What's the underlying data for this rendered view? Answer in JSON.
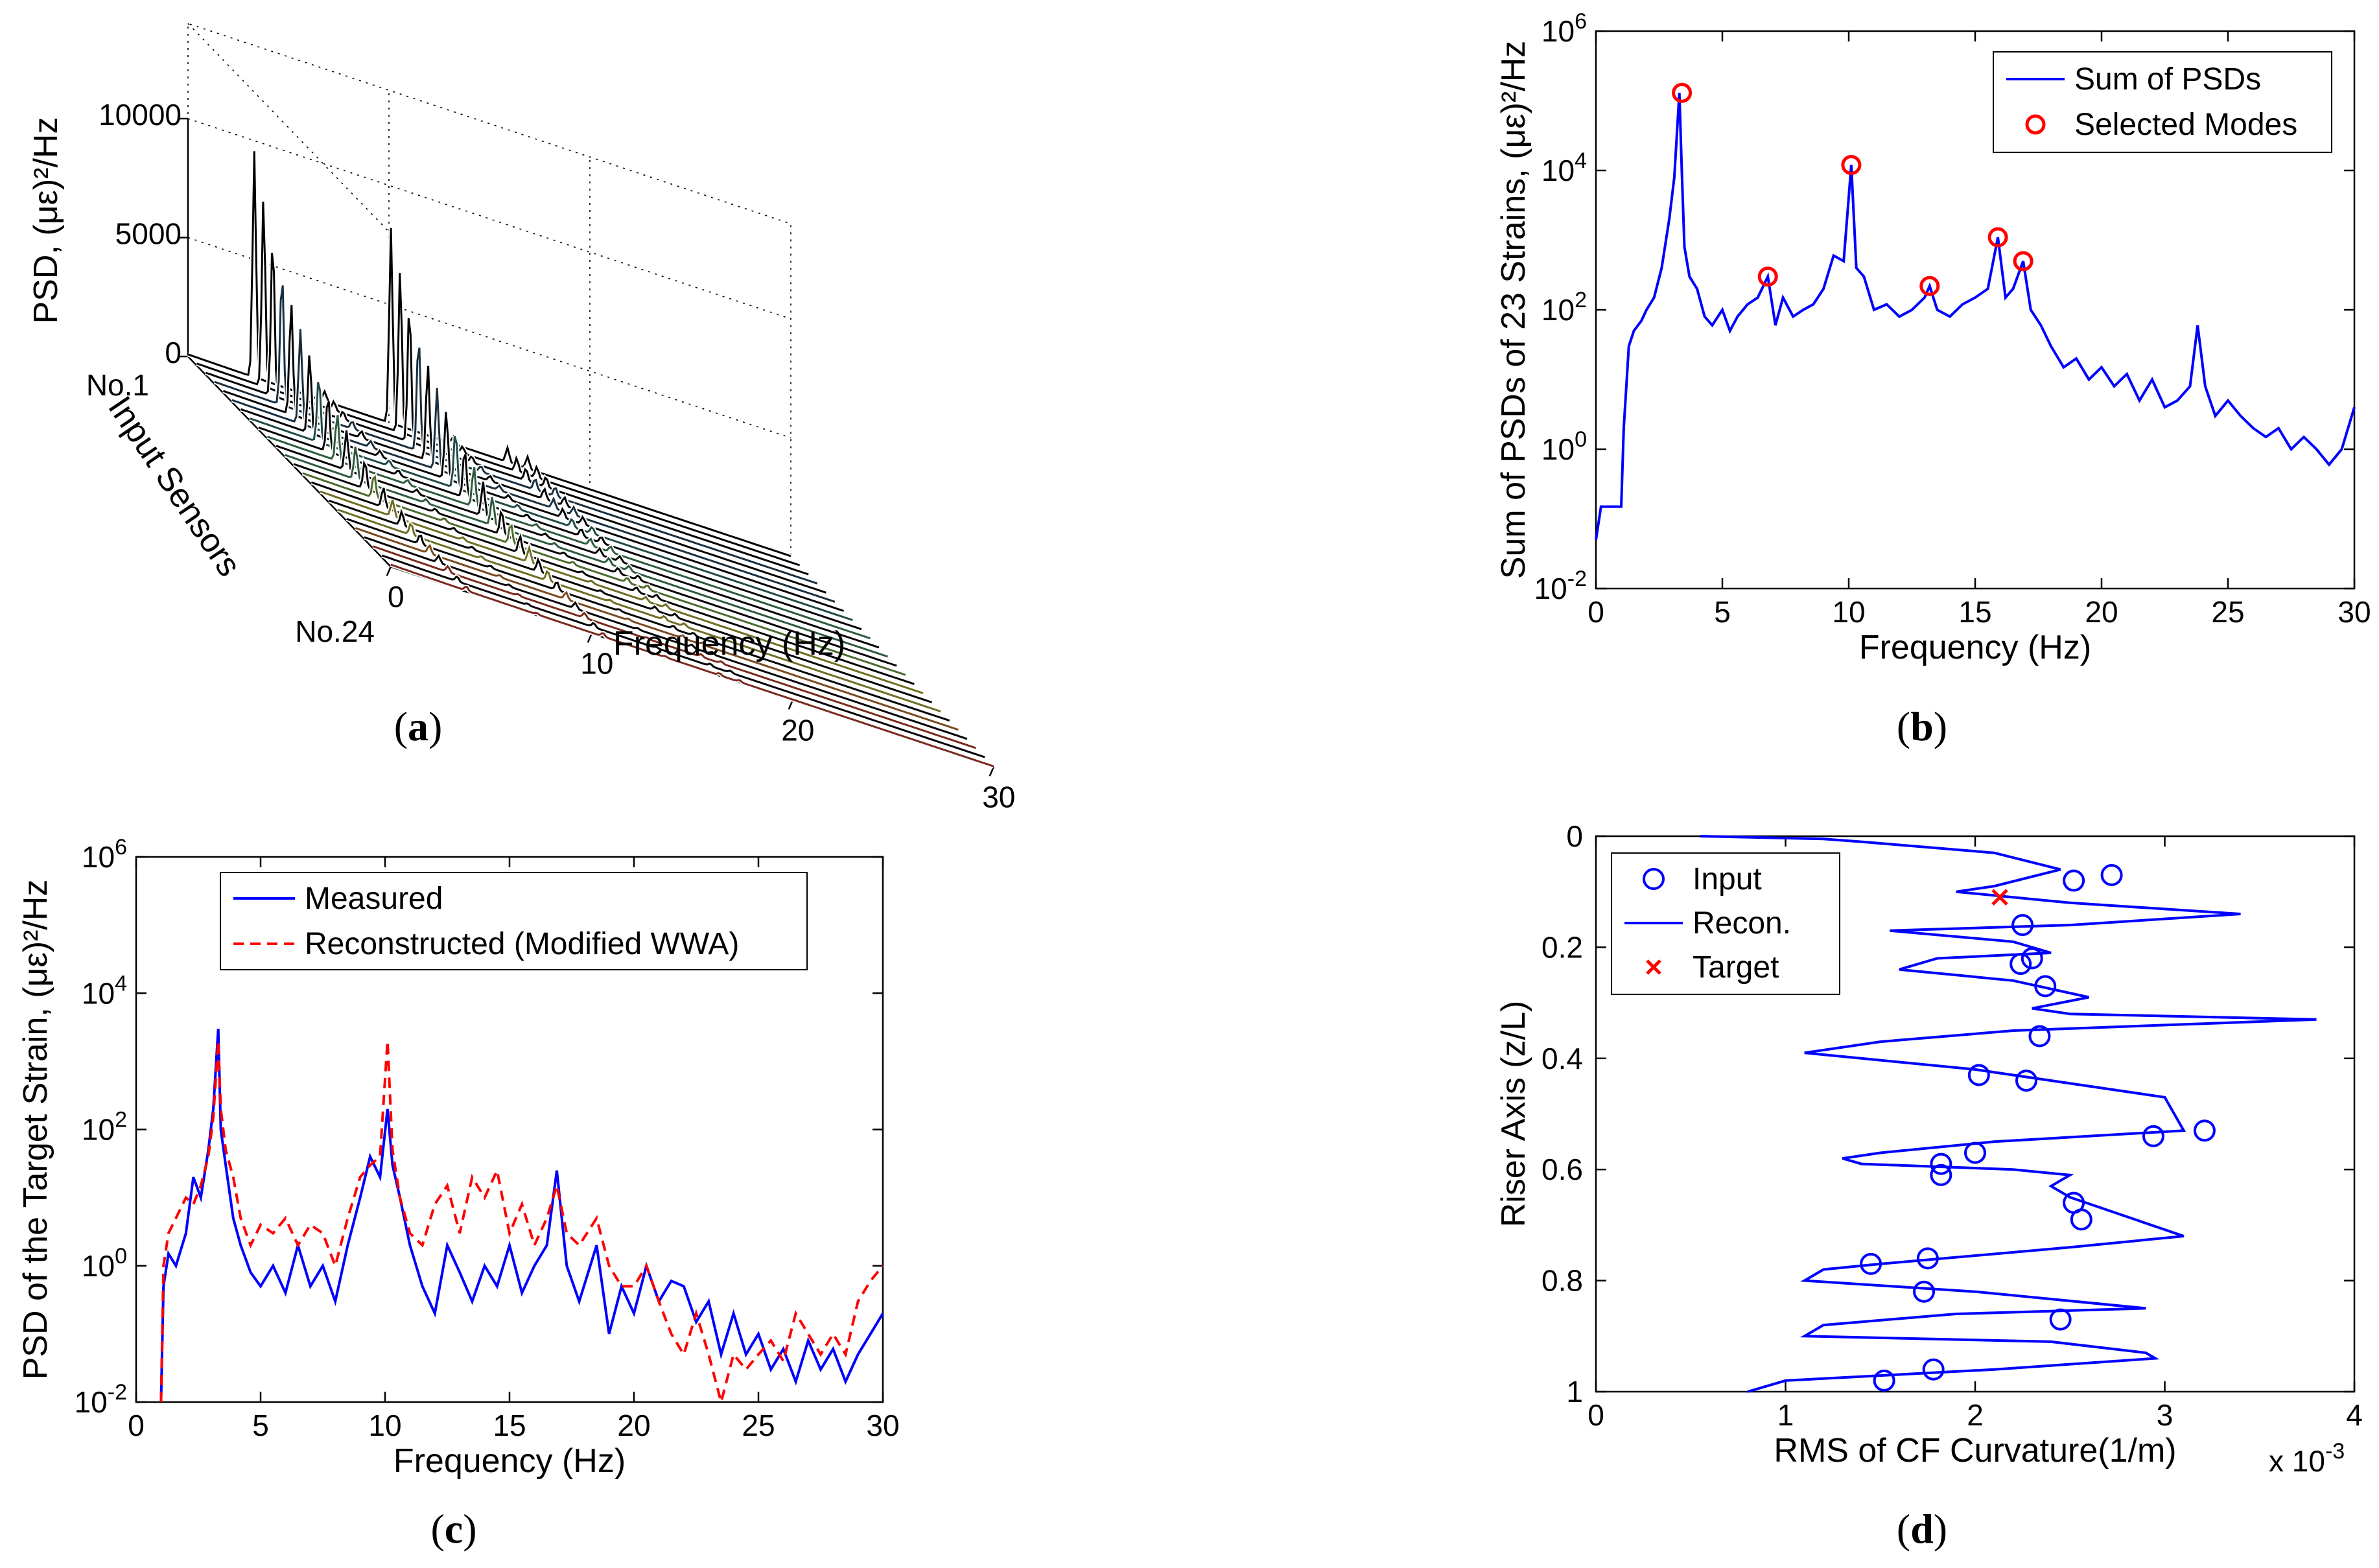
{
  "captions": {
    "a": "a",
    "b": "b",
    "c": "c",
    "d": "d"
  },
  "chart_data": [
    {
      "id": "a",
      "type": "waterfall",
      "title": "",
      "zlabel": "PSD, (με)²/Hz",
      "ylabel": "Input Sensors",
      "xlabel": "Frequency (Hz)",
      "z_ticks": [
        "0",
        "5000",
        "10000"
      ],
      "x_ticks": [
        "0",
        "10",
        "20",
        "30"
      ],
      "sensor_ticks": [
        "No.1",
        "No.24"
      ],
      "sensor_count": 24,
      "xlim": [
        0,
        30
      ],
      "zlim": [
        0,
        10000
      ],
      "peak_frequencies_hz": [
        3.3,
        6.8,
        10.1,
        13.2,
        15.9,
        16.9
      ],
      "peak_amplitudes_first_sensor": [
        9500,
        400,
        8200,
        300,
        600,
        500
      ]
    },
    {
      "id": "b",
      "type": "line",
      "scale": "log-y",
      "xlabel": "Frequency (Hz)",
      "ylabel": "Sum of PSDs of 23 Strains, (με)²/Hz",
      "xlim": [
        0,
        30
      ],
      "ylim_exp": [
        -2,
        6
      ],
      "x_ticks": [
        "0",
        "5",
        "10",
        "15",
        "20",
        "25",
        "30"
      ],
      "y_tick_exps": [
        -2,
        0,
        2,
        4,
        6
      ],
      "legend": [
        "Sum of PSDs",
        "Selected Modes"
      ],
      "selected_modes": {
        "x": [
          3.4,
          6.8,
          10.1,
          13.2,
          15.9,
          16.9
        ],
        "y": [
          130000,
          300,
          12000,
          220,
          1100,
          500
        ]
      },
      "series": [
        {
          "name": "Sum of PSDs",
          "x": [
            0,
            0.2,
            0.5,
            1.0,
            1.1,
            1.3,
            1.5,
            1.8,
            2.0,
            2.3,
            2.6,
            2.9,
            3.1,
            3.3,
            3.4,
            3.5,
            3.7,
            4.0,
            4.3,
            4.6,
            5.0,
            5.3,
            5.6,
            6.0,
            6.4,
            6.8,
            7.1,
            7.4,
            7.8,
            8.2,
            8.6,
            9.0,
            9.4,
            9.8,
            10.1,
            10.3,
            10.6,
            11.0,
            11.5,
            12.0,
            12.5,
            13.0,
            13.2,
            13.5,
            14.0,
            14.5,
            15.0,
            15.5,
            15.9,
            16.2,
            16.5,
            16.9,
            17.2,
            17.6,
            18.0,
            18.5,
            19.0,
            19.5,
            20.0,
            20.5,
            21.0,
            21.5,
            22.0,
            22.5,
            23.0,
            23.5,
            23.8,
            24.1,
            24.5,
            25.0,
            25.5,
            26.0,
            26.5,
            27.0,
            27.5,
            28.0,
            28.5,
            29.0,
            29.5,
            30.0
          ],
          "y": [
            0.05,
            0.15,
            0.15,
            0.15,
            2,
            30,
            50,
            70,
            100,
            150,
            400,
            2000,
            8000,
            130000,
            9000,
            800,
            300,
            200,
            80,
            60,
            100,
            50,
            80,
            120,
            150,
            300,
            60,
            150,
            80,
            100,
            120,
            200,
            600,
            500,
            12000,
            400,
            300,
            100,
            120,
            80,
            100,
            150,
            220,
            100,
            80,
            120,
            150,
            200,
            1100,
            150,
            200,
            500,
            100,
            60,
            30,
            15,
            20,
            10,
            15,
            8,
            12,
            5,
            10,
            4,
            5,
            8,
            60,
            8,
            3,
            5,
            3,
            2,
            1.5,
            2,
            1,
            1.5,
            1,
            0.6,
            1,
            4
          ]
        }
      ]
    },
    {
      "id": "c",
      "type": "line",
      "scale": "log-y",
      "xlabel": "Frequency (Hz)",
      "ylabel": "PSD of the Target Strain, (με)²/Hz",
      "xlim": [
        0,
        30
      ],
      "ylim_exp": [
        -2,
        6
      ],
      "x_ticks": [
        "0",
        "5",
        "10",
        "15",
        "20",
        "25",
        "30"
      ],
      "y_tick_exps": [
        -2,
        0,
        2,
        4,
        6
      ],
      "legend": [
        "Measured",
        "Reconstructed (Modified WWA)"
      ],
      "series": [
        {
          "name": "Measured",
          "style": "solid",
          "color": "#0000ff",
          "x": [
            1.0,
            1.1,
            1.3,
            1.6,
            2.0,
            2.3,
            2.6,
            2.9,
            3.1,
            3.3,
            3.4,
            3.6,
            3.9,
            4.2,
            4.6,
            5.0,
            5.5,
            6.0,
            6.5,
            7.0,
            7.5,
            8.0,
            8.5,
            9.0,
            9.4,
            9.8,
            10.1,
            10.3,
            10.6,
            11.0,
            11.5,
            12.0,
            12.5,
            13.0,
            13.5,
            14.0,
            14.5,
            15.0,
            15.5,
            16.0,
            16.5,
            16.9,
            17.3,
            17.8,
            18.5,
            19.0,
            19.5,
            20.0,
            20.5,
            21.0,
            21.5,
            22.0,
            22.5,
            23.0,
            23.5,
            24.0,
            24.5,
            25.0,
            25.5,
            26.0,
            26.5,
            27.0,
            27.5,
            28.0,
            28.5,
            29.0,
            29.5,
            30.0
          ],
          "y": [
            0.01,
            0.5,
            1.5,
            1,
            3,
            20,
            10,
            50,
            200,
            3000,
            100,
            30,
            5,
            2,
            0.8,
            0.5,
            1,
            0.4,
            2,
            0.5,
            1,
            0.3,
            2,
            10,
            40,
            20,
            200,
            30,
            10,
            2,
            0.5,
            0.2,
            2,
            0.8,
            0.3,
            1,
            0.5,
            2,
            0.4,
            1,
            2,
            25,
            1,
            0.3,
            2,
            0.1,
            0.5,
            0.2,
            1,
            0.3,
            0.6,
            0.5,
            0.15,
            0.3,
            0.05,
            0.2,
            0.05,
            0.1,
            0.03,
            0.06,
            0.02,
            0.08,
            0.03,
            0.06,
            0.02,
            0.05,
            0.1,
            0.2
          ]
        },
        {
          "name": "Reconstructed (Modified WWA)",
          "style": "dashed",
          "color": "#ff0000",
          "x": [
            1.0,
            1.1,
            1.3,
            1.6,
            2.0,
            2.3,
            2.6,
            2.9,
            3.1,
            3.3,
            3.4,
            3.6,
            3.9,
            4.2,
            4.6,
            5.0,
            5.5,
            6.0,
            6.5,
            7.0,
            7.5,
            8.0,
            8.5,
            9.0,
            9.4,
            9.8,
            10.1,
            10.3,
            10.6,
            11.0,
            11.5,
            12.0,
            12.5,
            13.0,
            13.5,
            14.0,
            14.5,
            15.0,
            15.5,
            16.0,
            16.5,
            16.9,
            17.3,
            17.8,
            18.5,
            19.0,
            19.5,
            20.0,
            20.5,
            21.0,
            21.5,
            22.0,
            22.5,
            23.0,
            23.5,
            24.0,
            24.5,
            25.0,
            25.5,
            26.0,
            26.5,
            27.0,
            27.5,
            28.0,
            28.5,
            29.0,
            29.5,
            30.0
          ],
          "y": [
            0.01,
            1,
            3,
            5,
            10,
            8,
            15,
            40,
            150,
            2000,
            200,
            50,
            20,
            5,
            2,
            4,
            3,
            5,
            2,
            4,
            3,
            1,
            5,
            20,
            30,
            40,
            2000,
            50,
            10,
            3,
            2,
            8,
            15,
            3,
            20,
            10,
            25,
            3,
            8,
            2,
            5,
            15,
            3,
            2,
            5,
            1,
            0.5,
            0.5,
            1,
            0.3,
            0.1,
            0.05,
            0.2,
            0.05,
            0.01,
            0.05,
            0.03,
            0.05,
            0.08,
            0.04,
            0.2,
            0.1,
            0.05,
            0.1,
            0.05,
            0.3,
            0.6,
            1
          ]
        }
      ]
    },
    {
      "id": "d",
      "type": "line+scatter",
      "xlabel": "RMS of CF Curvature(1/m)",
      "ylabel": "Riser Axis (z/L)",
      "x_multiplier": "x 10",
      "x_multiplier_exp": "-3",
      "xlim": [
        0,
        4
      ],
      "ylim": [
        0,
        1
      ],
      "y_reversed": true,
      "x_ticks": [
        "0",
        "1",
        "2",
        "3",
        "4"
      ],
      "y_ticks": [
        "0",
        "0.2",
        "0.4",
        "0.6",
        "0.8",
        "1"
      ],
      "legend": [
        "Input",
        "Recon.",
        "Target"
      ],
      "input_points": {
        "x": [
          2.72,
          2.52,
          2.25,
          2.3,
          2.24,
          2.37,
          2.34,
          2.02,
          2.27,
          3.21,
          2.94,
          2.0,
          1.82,
          1.82,
          2.52,
          2.56,
          1.75,
          1.45,
          1.73,
          2.45,
          1.78,
          1.52
        ],
        "y": [
          0.07,
          0.08,
          0.16,
          0.22,
          0.23,
          0.27,
          0.36,
          0.43,
          0.44,
          0.53,
          0.54,
          0.57,
          0.59,
          0.61,
          0.66,
          0.69,
          0.76,
          0.77,
          0.82,
          0.87,
          0.96,
          0.98
        ]
      },
      "target_point": {
        "x": 2.13,
        "y": 0.11
      },
      "recon": {
        "x": [
          0.55,
          1.2,
          1.4,
          2.1,
          2.45,
          2.1,
          1.9,
          2.5,
          3.4,
          2.5,
          1.55,
          2.2,
          2.4,
          1.8,
          1.6,
          2.2,
          2.6,
          2.3,
          2.5,
          3.8,
          3.0,
          2.2,
          1.5,
          1.1,
          1.4,
          2.0,
          3.0,
          3.1,
          2.1,
          1.5,
          1.3,
          1.4,
          2.2,
          2.5,
          2.4,
          2.5,
          3.1,
          2.5,
          1.5,
          1.2,
          1.1,
          2.0,
          2.9,
          1.9,
          1.2,
          1.1,
          2.4,
          2.9,
          2.95,
          2.1,
          1.0,
          0.8
        ],
        "y": [
          0.0,
          0.005,
          0.01,
          0.03,
          0.06,
          0.09,
          0.1,
          0.12,
          0.14,
          0.16,
          0.17,
          0.19,
          0.21,
          0.22,
          0.24,
          0.26,
          0.29,
          0.31,
          0.32,
          0.33,
          0.34,
          0.35,
          0.37,
          0.39,
          0.4,
          0.42,
          0.47,
          0.53,
          0.55,
          0.57,
          0.58,
          0.59,
          0.6,
          0.61,
          0.63,
          0.65,
          0.72,
          0.74,
          0.77,
          0.78,
          0.8,
          0.82,
          0.85,
          0.86,
          0.88,
          0.9,
          0.91,
          0.93,
          0.94,
          0.96,
          0.98,
          1.0
        ]
      }
    }
  ]
}
